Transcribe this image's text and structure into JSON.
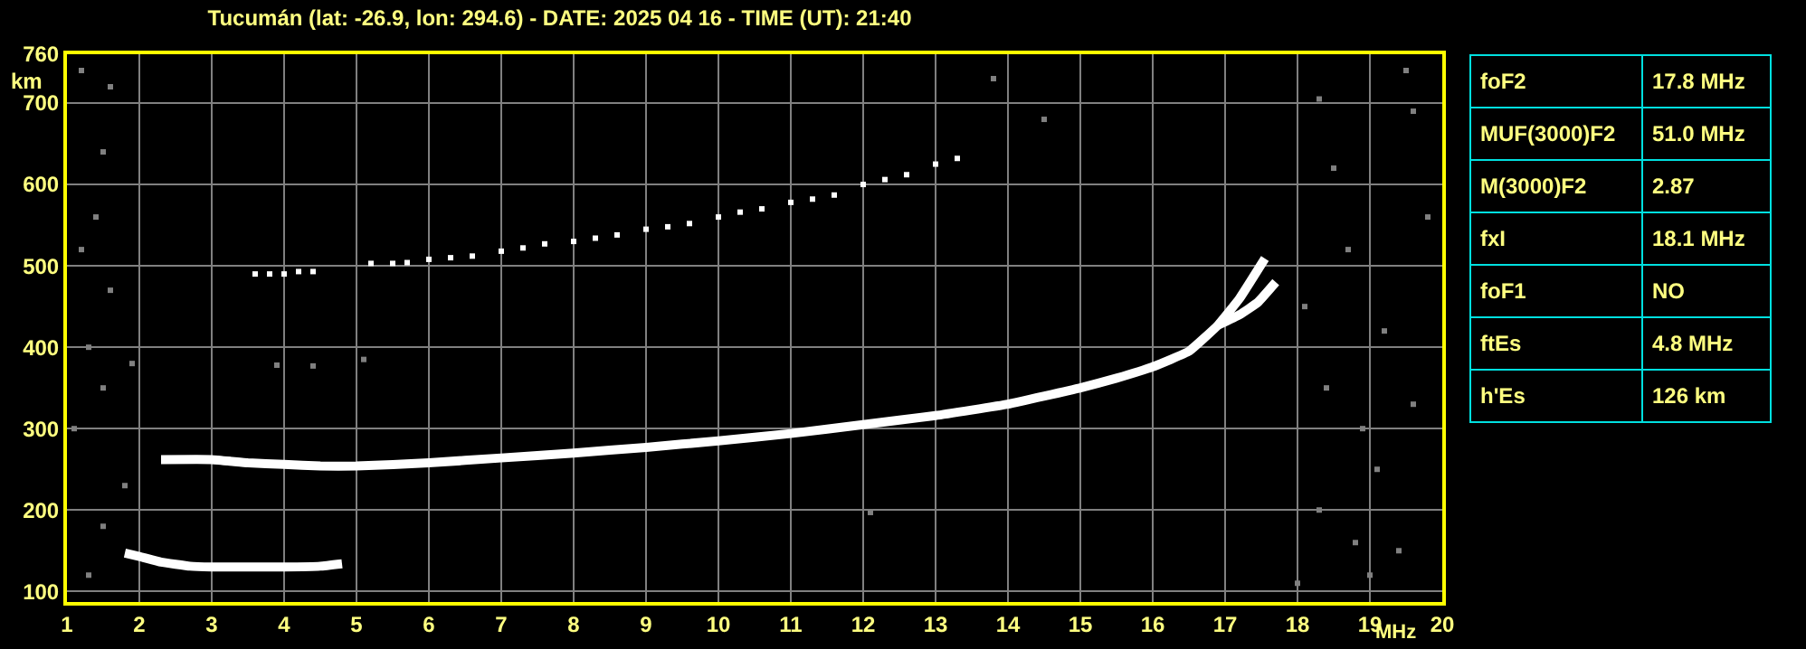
{
  "chart_data": [
    {
      "type": "line",
      "title": "Tucumán (lat: -26.9, lon: 294.6) - DATE: 2025 04 16 - TIME (UT): 21:40",
      "xlabel": "MHz",
      "ylabel": "km",
      "xlim": [
        1,
        20
      ],
      "ylim": [
        87,
        760
      ],
      "xticks": [
        1,
        2,
        3,
        4,
        5,
        6,
        7,
        8,
        9,
        10,
        11,
        12,
        13,
        14,
        15,
        16,
        17,
        18,
        19,
        20
      ],
      "yticks": [
        100,
        200,
        300,
        400,
        500,
        600,
        700,
        760
      ],
      "grid": true,
      "legend": false,
      "line_style": "solid",
      "series": [
        {
          "type": "line",
          "color": "#ffffff",
          "x": [
            1.8,
            2.0,
            2.3,
            2.7,
            3.0,
            3.5,
            4.0,
            4.5,
            4.8
          ],
          "values": [
            147,
            143,
            136,
            131,
            130,
            130,
            130,
            131,
            134
          ]
        },
        {
          "type": "line",
          "color": "#ffffff",
          "x": [
            2.3,
            3.0,
            3.5,
            4.0,
            4.5,
            5.0,
            6.0,
            7.0,
            8.0,
            9.0,
            10.0,
            11.0,
            12.0,
            13.0,
            14.0,
            15.0,
            15.5,
            16.0,
            16.5,
            16.9,
            17.2,
            17.55
          ],
          "values": [
            262,
            262,
            258,
            256,
            254,
            254,
            258,
            264,
            270,
            277,
            285,
            294,
            305,
            316,
            330,
            350,
            362,
            376,
            395,
            427,
            460,
            509
          ]
        },
        {
          "type": "line",
          "color": "#ffffff",
          "x": [
            16.9,
            17.2,
            17.45,
            17.7
          ],
          "values": [
            427,
            440,
            455,
            480
          ]
        },
        {
          "type": "scatter",
          "marker": "square",
          "color": "#ffffff",
          "x": [
            3.6,
            3.8,
            4.0,
            4.2,
            4.4,
            5.2,
            5.5,
            5.7,
            6.0,
            6.3,
            6.6,
            7.0,
            7.3,
            7.6,
            8.0,
            8.3,
            8.6,
            9.0,
            9.3,
            9.6,
            10.0,
            10.3,
            10.6,
            11.0,
            11.3,
            11.6,
            12.0,
            12.3,
            12.6,
            13.0,
            13.3
          ],
          "values": [
            490,
            490,
            490,
            493,
            493,
            503,
            503,
            504,
            508,
            510,
            512,
            518,
            522,
            527,
            530,
            534,
            538,
            545,
            548,
            552,
            560,
            566,
            570,
            578,
            582,
            587,
            600,
            606,
            612,
            625,
            632
          ]
        },
        {
          "type": "scatter",
          "marker": "square",
          "color": "#808080",
          "x": [
            1.2,
            1.6,
            1.5,
            1.4,
            1.2,
            1.6,
            1.3,
            1.5,
            1.1,
            1.8,
            1.5,
            1.3,
            1.9,
            3.9,
            4.4,
            5.1,
            12.1,
            13.8,
            14.5,
            18.3,
            18.5,
            18.7,
            18.1,
            18.4,
            18.9,
            19.1,
            18.3,
            19.4,
            18.0,
            19.6,
            19.8,
            19.2,
            19.6,
            19.0,
            19.5,
            18.8
          ],
          "values": [
            740,
            720,
            640,
            560,
            520,
            470,
            400,
            350,
            300,
            230,
            180,
            120,
            380,
            378,
            377,
            385,
            197,
            730,
            680,
            705,
            620,
            520,
            450,
            350,
            300,
            250,
            200,
            150,
            110,
            690,
            560,
            420,
            330,
            120,
            740,
            160
          ]
        }
      ]
    },
    {
      "type": "other",
      "annotations": [
        "foF2",
        "17.8 MHz",
        "MUF(3000)F2",
        "51.0 MHz",
        "M(3000)F2",
        "2.87",
        "fxI",
        "18.1 MHz",
        "foF1",
        "NO",
        "ftEs",
        "4.8 MHz",
        "h'Es",
        "126 km"
      ]
    }
  ]
}
